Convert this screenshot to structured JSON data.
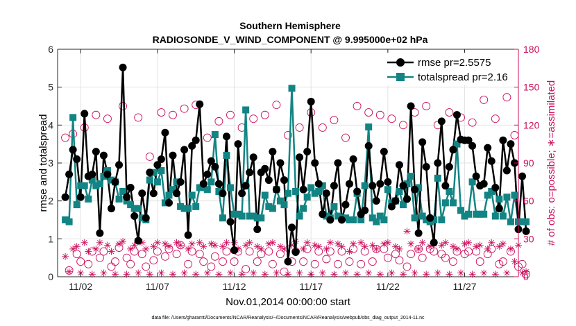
{
  "chart_data": {
    "type": "line",
    "title": "Southern Hemisphere",
    "subtitle": "RADIOSONDE_V_WIND_COMPONENT @ 9.995000e+02 hPa",
    "xlabel": "Nov.01,2014 00:00:00 start",
    "ylabel_left": "rmse and totalspread",
    "ylabel_right": "# of obs: o=possible; ∗=assimilated",
    "footnote": "data file: /Users/gharamti/Documents/NCAR/Reanalysis/~/Documents/NCAR/Reanalysis/webpub/obs_diag_output_2014-11.nc",
    "xlim": [
      0.5,
      30.5
    ],
    "ylim_left": [
      0,
      6
    ],
    "ylim_right": [
      0,
      180
    ],
    "x_ticks": [
      2,
      7,
      12,
      17,
      22,
      27
    ],
    "x_tick_labels": [
      "11/02",
      "11/07",
      "11/12",
      "11/17",
      "11/22",
      "11/27"
    ],
    "y_left_ticks": [
      "0",
      "1",
      "2",
      "3",
      "4",
      "5",
      "6"
    ],
    "y_right_ticks": [
      "0",
      "30",
      "60",
      "90",
      "120",
      "150",
      "180"
    ],
    "legend_location": "top-right",
    "colors": {
      "rmse": "#000000",
      "totalspread": "#138484",
      "obs_count": "#cc0f5c",
      "right_axis": "#cc0f5c"
    },
    "x_step_days": 0.25,
    "series": [
      {
        "name": "rmse",
        "legend_label": "rmse pr=2.5575",
        "axis": "left",
        "marker": "filled-circle",
        "values": [
          2.1,
          2.7,
          3.35,
          3.1,
          2.1,
          4.3,
          2.65,
          2.7,
          3.3,
          1.15,
          3.2,
          2.7,
          1.8,
          2.5,
          2.95,
          5.52,
          2.1,
          2.35,
          1.6,
          0.95,
          2.2,
          1.55,
          2.75,
          2.2,
          2.95,
          3.1,
          3.8,
          1.95,
          3.2,
          2.2,
          2.5,
          3.35,
          1.1,
          3.45,
          3.6,
          4.55,
          2.45,
          2.7,
          3.05,
          2.9,
          2.45,
          2.2,
          3.7,
          1.45,
          0.7,
          3.5,
          2.2,
          2.4,
          2.75,
          3.15,
          1.25,
          2.75,
          2.85,
          2.55,
          3.3,
          2.3,
          3.0,
          2.55,
          0.4,
          1.3,
          0.65,
          3.15,
          2.3,
          3.3,
          4.62,
          3.0,
          2.45,
          1.65,
          2.2,
          1.5,
          2.4,
          3.0,
          1.5,
          1.9,
          2.45,
          3.1,
          2.25,
          1.65,
          1.75,
          3.45,
          2.4,
          2.0,
          2.45,
          3.3,
          2.5,
          1.85,
          2.0,
          2.95,
          2.4,
          2.05,
          4.5,
          2.3,
          1.15,
          3.55,
          2.9,
          1.55,
          0.9,
          3.0,
          4.1,
          2.4,
          2.9,
          3.35,
          4.27,
          3.62,
          3.6,
          3.6,
          3.45,
          2.65,
          2.4,
          2.45,
          3.4,
          3.05,
          2.35,
          1.8,
          3.6,
          2.8,
          3.5,
          3.0,
          1.25,
          2.65,
          1.2
        ]
      },
      {
        "name": "totalspread",
        "legend_label": "totalspread pr=2.16",
        "axis": "left",
        "marker": "filled-square",
        "values": [
          1.5,
          1.45,
          4.2,
          1.9,
          2.4,
          2.4,
          2.05,
          2.55,
          2.4,
          2.45,
          2.65,
          2.8,
          2.55,
          2.5,
          2.05,
          2.25,
          2.0,
          1.9,
          1.8,
          1.8,
          1.55,
          1.5,
          2.55,
          2.75,
          2.5,
          2.8,
          1.95,
          2.15,
          2.3,
          2.5,
          1.85,
          1.8,
          1.8,
          2.15,
          1.85,
          2.35,
          2.35,
          2.3,
          2.5,
          3.75,
          2.25,
          1.55,
          3.2,
          2.35,
          1.65,
          1.65,
          1.6,
          4.4,
          1.6,
          1.6,
          1.55,
          1.55,
          2.15,
          1.85,
          1.8,
          2.3,
          2.0,
          1.9,
          2.2,
          4.97,
          2.25,
          1.6,
          1.8,
          2.1,
          2.35,
          2.2,
          2.25,
          2.4,
          1.6,
          1.55,
          1.85,
          1.6,
          1.55,
          1.55,
          1.5,
          1.5,
          2.2,
          1.5,
          2.4,
          3.95,
          1.55,
          1.45,
          1.6,
          1.5,
          2.3,
          1.95,
          2.0,
          2.25,
          1.9,
          2.45,
          2.65,
          1.55,
          2.35,
          1.6,
          1.5,
          1.45,
          1.5,
          2.6,
          1.5,
          1.95,
          2.25,
          1.95,
          3.5,
          1.75,
          1.6,
          1.65,
          2.5,
          1.65,
          1.65,
          1.65,
          2.15,
          2.25,
          1.6,
          2.05,
          1.6,
          2.1,
          1.45,
          2.15,
          1.45,
          1.45,
          1.45
        ]
      },
      {
        "name": "possible",
        "axis": "right",
        "marker": "open-circle",
        "values": [
          110,
          5,
          113,
          18,
          12,
          118,
          10,
          20,
          128,
          15,
          20,
          125,
          8,
          12,
          23,
          135,
          15,
          10,
          20,
          126,
          18,
          8,
          95,
          13,
          20,
          130,
          16,
          22,
          128,
          18,
          25,
          133,
          10,
          20,
          136,
          18,
          12,
          110,
          8,
          16,
          123,
          12,
          20,
          128,
          12,
          20,
          118,
          6,
          20,
          125,
          12,
          18,
          128,
          20,
          10,
          136,
          18,
          4,
          112,
          12,
          20,
          118,
          12,
          22,
          130,
          10,
          20,
          118,
          14,
          20,
          124,
          10,
          20,
          110,
          12,
          22,
          135,
          10,
          20,
          130,
          12,
          22,
          128,
          22,
          15,
          125,
          18,
          13,
          120,
          8,
          18,
          130,
          22,
          15,
          135,
          22,
          20,
          120,
          18,
          15,
          130,
          12,
          20,
          126,
          18,
          20,
          122,
          20,
          12,
          140,
          18,
          22,
          125,
          10,
          12,
          142,
          20,
          112,
          8,
          10,
          2
        ]
      },
      {
        "name": "assimilated",
        "axis": "right",
        "marker": "asterisk",
        "values": [
          16,
          4,
          22,
          24,
          3,
          27,
          20,
          2,
          22,
          27,
          3,
          25,
          20,
          2,
          26,
          28,
          2,
          22,
          25,
          3,
          27,
          22,
          2,
          24,
          27,
          3,
          26,
          24,
          2,
          27,
          25,
          3,
          22,
          26,
          2,
          27,
          24,
          3,
          26,
          25,
          2,
          24,
          27,
          3,
          27,
          22,
          2,
          25,
          27,
          3,
          24,
          22,
          2,
          26,
          27,
          3,
          24,
          22,
          2,
          25,
          28,
          3,
          22,
          27,
          2,
          25,
          24,
          3,
          22,
          27,
          2,
          26,
          24,
          3,
          20,
          26,
          2,
          27,
          24,
          3,
          25,
          22,
          2,
          26,
          27,
          3,
          24,
          22,
          2,
          36,
          26,
          3,
          22,
          27,
          2,
          24,
          26,
          3,
          25,
          27,
          2,
          24,
          22,
          3,
          26,
          27,
          2,
          24,
          25,
          3,
          22,
          27,
          2,
          24,
          26,
          3,
          22,
          12,
          25,
          3,
          4
        ]
      }
    ]
  }
}
